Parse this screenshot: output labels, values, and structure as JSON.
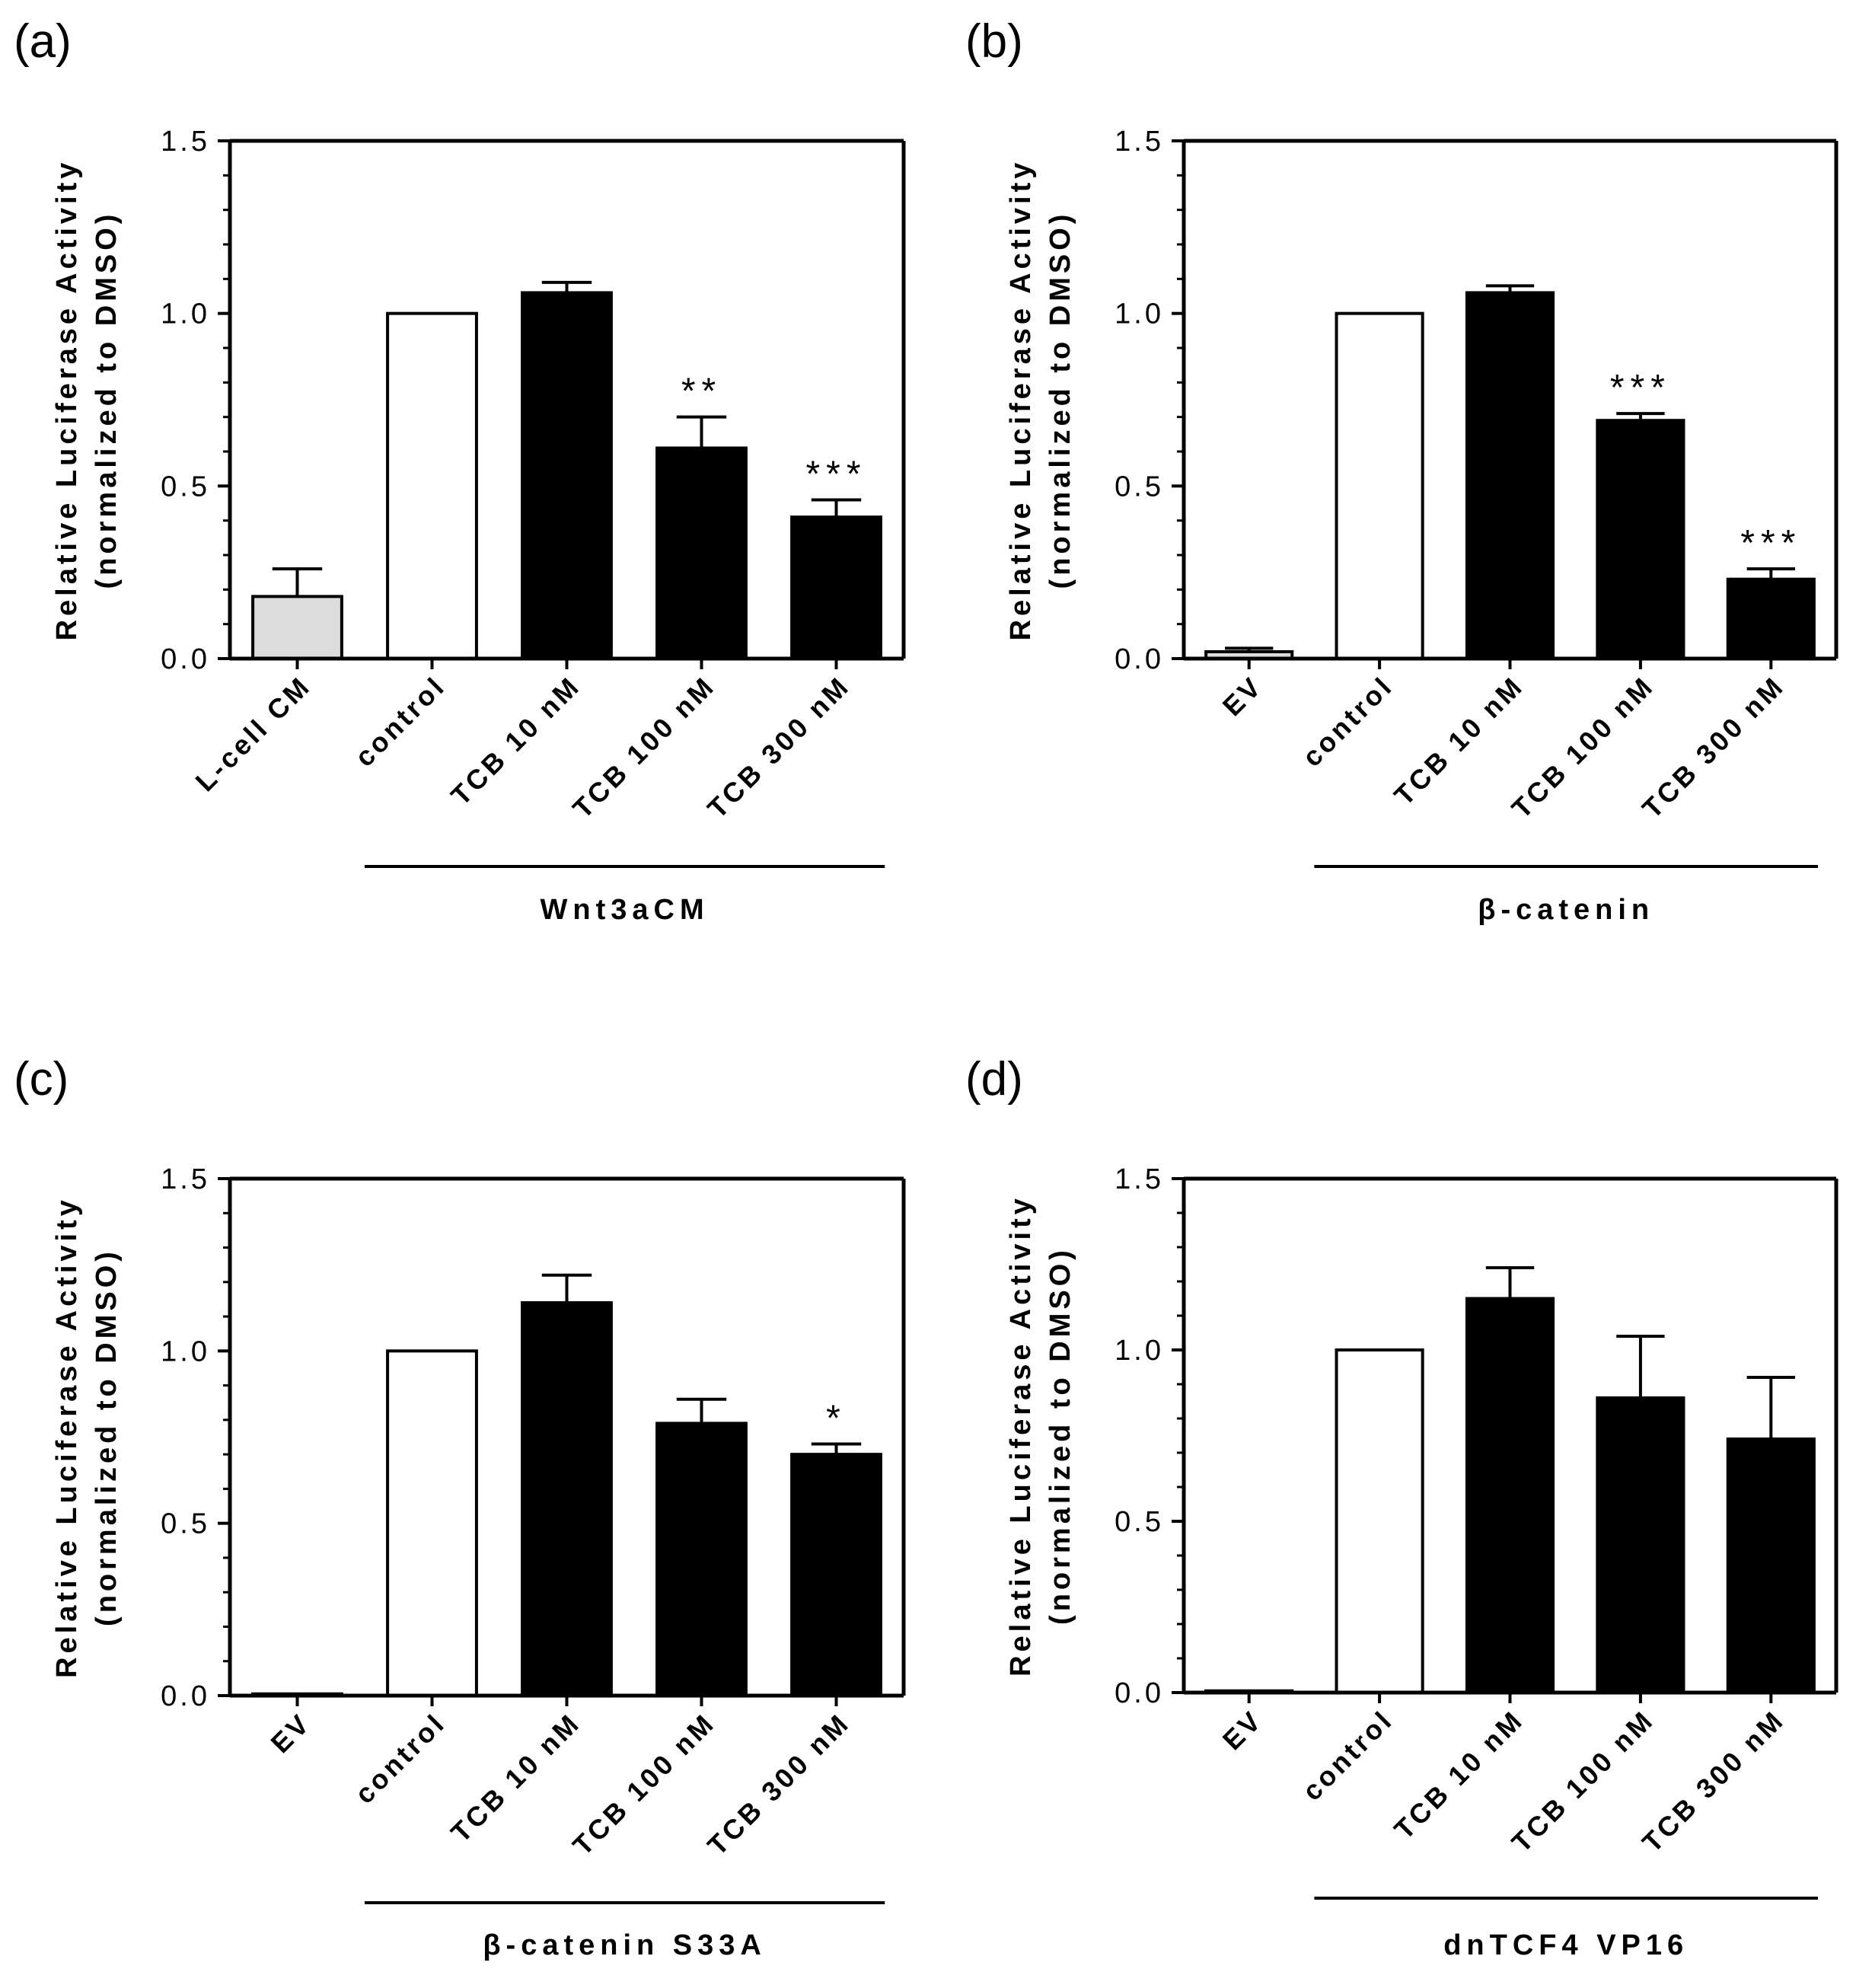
{
  "colors": {
    "light": "#dcdcdc",
    "open": "#ffffff",
    "filled": "#000000",
    "axis": "#000000"
  },
  "chart_data": [
    {
      "panel": "(a)",
      "type": "bar",
      "ylabel": "Relative Luciferase Activity",
      "ylabel2": "(normalized to DMSO)",
      "ylim": [
        0,
        1.5
      ],
      "yticks": [
        "0.0",
        "0.5",
        "1.0",
        "1.5"
      ],
      "categories": [
        "L-cell CM",
        "control",
        "TCB 10 nM",
        "TCB 100 nM",
        "TCB 300 nM"
      ],
      "values": [
        0.18,
        1.0,
        1.06,
        0.61,
        0.41
      ],
      "errors": [
        0.08,
        0,
        0.03,
        0.09,
        0.05
      ],
      "fills": [
        "light",
        "open",
        "filled",
        "filled",
        "filled"
      ],
      "significance": [
        "",
        "",
        "",
        "**",
        "***"
      ],
      "group_label": "Wnt3aCM",
      "group_start": 1
    },
    {
      "panel": "(b)",
      "type": "bar",
      "ylabel": "Relative Luciferase Activity",
      "ylabel2": "(normalized to DMSO)",
      "ylim": [
        0,
        1.5
      ],
      "yticks": [
        "0.0",
        "0.5",
        "1.0",
        "1.5"
      ],
      "categories": [
        "EV",
        "control",
        "TCB 10 nM",
        "TCB 100 nM",
        "TCB 300 nM"
      ],
      "values": [
        0.02,
        1.0,
        1.06,
        0.69,
        0.23
      ],
      "errors": [
        0.01,
        0,
        0.02,
        0.02,
        0.03
      ],
      "fills": [
        "light",
        "open",
        "filled",
        "filled",
        "filled"
      ],
      "significance": [
        "",
        "",
        "",
        "***",
        "***"
      ],
      "group_label": "β-catenin",
      "group_start": 1
    },
    {
      "panel": "(c)",
      "type": "bar",
      "ylabel": "Relative Luciferase Activity",
      "ylabel2": "(normalized to DMSO)",
      "ylim": [
        0,
        1.5
      ],
      "yticks": [
        "0.0",
        "0.5",
        "1.0",
        "1.5"
      ],
      "categories": [
        "EV",
        "control",
        "TCB 10 nM",
        "TCB 100 nM",
        "TCB 300 nM"
      ],
      "values": [
        0.005,
        1.0,
        1.14,
        0.79,
        0.7
      ],
      "errors": [
        0,
        0,
        0.08,
        0.07,
        0.03
      ],
      "fills": [
        "light",
        "open",
        "filled",
        "filled",
        "filled"
      ],
      "significance": [
        "",
        "",
        "",
        "",
        "*"
      ],
      "group_label": "β-catenin S33A",
      "group_start": 1
    },
    {
      "panel": "(d)",
      "type": "bar",
      "ylabel": "Relative Luciferase Activity",
      "ylabel2": "(normalized to DMSO)",
      "ylim": [
        0,
        1.5
      ],
      "yticks": [
        "0.0",
        "0.5",
        "1.0",
        "1.5"
      ],
      "categories": [
        "EV",
        "control",
        "TCB 10 nM",
        "TCB 100 nM",
        "TCB 300 nM"
      ],
      "values": [
        0.005,
        1.0,
        1.15,
        0.86,
        0.74
      ],
      "errors": [
        0,
        0,
        0.09,
        0.18,
        0.18
      ],
      "fills": [
        "light",
        "open",
        "filled",
        "filled",
        "filled"
      ],
      "significance": [
        "",
        "",
        "",
        "",
        ""
      ],
      "group_label": "dnTCF4 VP16",
      "group_start": 1
    }
  ]
}
